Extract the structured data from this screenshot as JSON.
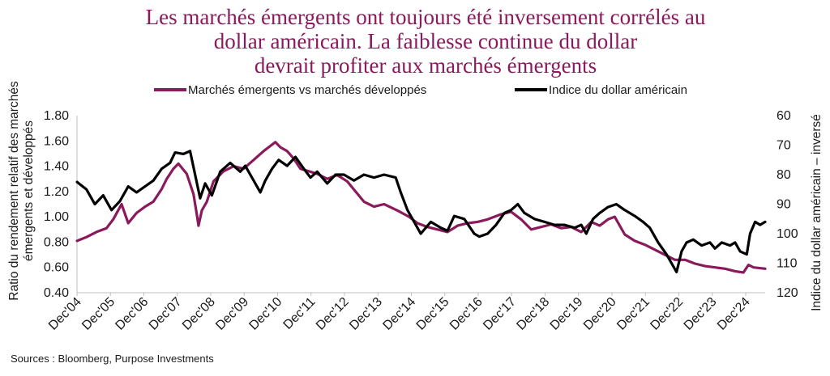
{
  "chart_data": {
    "type": "line",
    "title": [
      "Les marchés émergents ont toujours été inversement corrélés au",
      "dollar américain. La faiblesse continue du dollar",
      "devrait profiter aux marchés émergents"
    ],
    "source": "Sources : Bloomberg, Purpose Investments",
    "ylabel_left": [
      "Ratio du rendement relatif des marchés",
      "émergents et développés"
    ],
    "ylabel_right": "Indice du dollar américain – inversé",
    "y_left": {
      "min": 0.4,
      "max": 1.8,
      "ticks": [
        "1.80",
        "1.60",
        "1.40",
        "1.20",
        "1.00",
        "0.80",
        "0.60",
        "0.40"
      ]
    },
    "y_right": {
      "min": 60,
      "max": 120,
      "inverted": true,
      "ticks": [
        "60",
        "70",
        "80",
        "90",
        "100",
        "110",
        "120"
      ]
    },
    "x_range": [
      2004.917,
      2025.5
    ],
    "x_ticks": [
      {
        "label": "Dec'04",
        "x": 2004.917
      },
      {
        "label": "Dec'05",
        "x": 2005.917
      },
      {
        "label": "Dec'06",
        "x": 2006.917
      },
      {
        "label": "Dec'07",
        "x": 2007.917
      },
      {
        "label": "Dec'08",
        "x": 2008.917
      },
      {
        "label": "Dec'09",
        "x": 2009.917
      },
      {
        "label": "Dec'10",
        "x": 2010.917
      },
      {
        "label": "Dec'11",
        "x": 2011.917
      },
      {
        "label": "Dec'12",
        "x": 2012.917
      },
      {
        "label": "Dec'13",
        "x": 2013.917
      },
      {
        "label": "Dec'14",
        "x": 2014.917
      },
      {
        "label": "Dec'15",
        "x": 2015.917
      },
      {
        "label": "Dec'16",
        "x": 2016.917
      },
      {
        "label": "Dec'17",
        "x": 2017.917
      },
      {
        "label": "Dec'18",
        "x": 2018.917
      },
      {
        "label": "Dec'19",
        "x": 2019.917
      },
      {
        "label": "Dec'20",
        "x": 2020.917
      },
      {
        "label": "Dec'21",
        "x": 2021.917
      },
      {
        "label": "Dec'22",
        "x": 2022.917
      },
      {
        "label": "Dec'23",
        "x": 2023.917
      },
      {
        "label": "Dec'24",
        "x": 2024.917
      }
    ],
    "series": [
      {
        "name": "Marchés émergents vs marchés développés",
        "axis": "left",
        "color": "#8a1a5c",
        "points": [
          [
            2004.92,
            0.81
          ],
          [
            2005.2,
            0.84
          ],
          [
            2005.5,
            0.88
          ],
          [
            2005.8,
            0.91
          ],
          [
            2006.0,
            0.98
          ],
          [
            2006.25,
            1.1
          ],
          [
            2006.45,
            0.95
          ],
          [
            2006.7,
            1.03
          ],
          [
            2006.95,
            1.08
          ],
          [
            2007.2,
            1.12
          ],
          [
            2007.45,
            1.22
          ],
          [
            2007.6,
            1.3
          ],
          [
            2007.8,
            1.38
          ],
          [
            2007.95,
            1.42
          ],
          [
            2008.2,
            1.34
          ],
          [
            2008.4,
            1.18
          ],
          [
            2008.5,
            1.02
          ],
          [
            2008.55,
            0.93
          ],
          [
            2008.65,
            1.05
          ],
          [
            2008.8,
            1.12
          ],
          [
            2009.0,
            1.28
          ],
          [
            2009.3,
            1.36
          ],
          [
            2009.6,
            1.4
          ],
          [
            2009.9,
            1.38
          ],
          [
            2010.2,
            1.45
          ],
          [
            2010.5,
            1.52
          ],
          [
            2010.7,
            1.56
          ],
          [
            2010.85,
            1.59
          ],
          [
            2011.0,
            1.55
          ],
          [
            2011.2,
            1.52
          ],
          [
            2011.4,
            1.46
          ],
          [
            2011.6,
            1.38
          ],
          [
            2011.85,
            1.36
          ],
          [
            2012.1,
            1.34
          ],
          [
            2012.4,
            1.3
          ],
          [
            2012.7,
            1.33
          ],
          [
            2013.0,
            1.28
          ],
          [
            2013.25,
            1.2
          ],
          [
            2013.5,
            1.12
          ],
          [
            2013.8,
            1.08
          ],
          [
            2014.1,
            1.1
          ],
          [
            2014.5,
            1.05
          ],
          [
            2014.85,
            1.0
          ],
          [
            2015.1,
            0.95
          ],
          [
            2015.4,
            0.92
          ],
          [
            2015.7,
            0.9
          ],
          [
            2016.0,
            0.88
          ],
          [
            2016.3,
            0.93
          ],
          [
            2016.6,
            0.95
          ],
          [
            2016.9,
            0.96
          ],
          [
            2017.2,
            0.98
          ],
          [
            2017.6,
            1.02
          ],
          [
            2017.9,
            1.04
          ],
          [
            2018.2,
            0.98
          ],
          [
            2018.5,
            0.9
          ],
          [
            2018.8,
            0.92
          ],
          [
            2019.1,
            0.94
          ],
          [
            2019.4,
            0.91
          ],
          [
            2019.7,
            0.92
          ],
          [
            2020.0,
            0.88
          ],
          [
            2020.3,
            0.96
          ],
          [
            2020.55,
            0.93
          ],
          [
            2020.8,
            0.98
          ],
          [
            2021.0,
            1.0
          ],
          [
            2021.3,
            0.86
          ],
          [
            2021.6,
            0.81
          ],
          [
            2021.9,
            0.78
          ],
          [
            2022.2,
            0.74
          ],
          [
            2022.5,
            0.7
          ],
          [
            2022.8,
            0.66
          ],
          [
            2023.1,
            0.66
          ],
          [
            2023.4,
            0.63
          ],
          [
            2023.7,
            0.61
          ],
          [
            2024.0,
            0.6
          ],
          [
            2024.3,
            0.59
          ],
          [
            2024.6,
            0.57
          ],
          [
            2024.85,
            0.56
          ],
          [
            2025.0,
            0.62
          ],
          [
            2025.15,
            0.6
          ],
          [
            2025.5,
            0.59
          ]
        ]
      },
      {
        "name": "Indice du dollar américain",
        "axis": "right",
        "color": "#000000",
        "points": [
          [
            2004.92,
            82.5
          ],
          [
            2005.2,
            85
          ],
          [
            2005.45,
            90
          ],
          [
            2005.7,
            87
          ],
          [
            2005.95,
            92
          ],
          [
            2006.2,
            89
          ],
          [
            2006.45,
            84
          ],
          [
            2006.7,
            86
          ],
          [
            2006.95,
            84
          ],
          [
            2007.2,
            82
          ],
          [
            2007.45,
            78
          ],
          [
            2007.7,
            76
          ],
          [
            2007.85,
            72.5
          ],
          [
            2008.1,
            73
          ],
          [
            2008.3,
            72
          ],
          [
            2008.45,
            80
          ],
          [
            2008.6,
            88
          ],
          [
            2008.75,
            83
          ],
          [
            2008.95,
            87
          ],
          [
            2009.2,
            79
          ],
          [
            2009.5,
            76
          ],
          [
            2009.8,
            79
          ],
          [
            2009.95,
            77
          ],
          [
            2010.1,
            80
          ],
          [
            2010.4,
            86
          ],
          [
            2010.55,
            82
          ],
          [
            2010.75,
            78
          ],
          [
            2010.95,
            75
          ],
          [
            2011.2,
            77
          ],
          [
            2011.45,
            74
          ],
          [
            2011.7,
            78
          ],
          [
            2011.9,
            81
          ],
          [
            2012.1,
            79
          ],
          [
            2012.4,
            83
          ],
          [
            2012.65,
            80
          ],
          [
            2012.9,
            80
          ],
          [
            2013.2,
            82
          ],
          [
            2013.5,
            80
          ],
          [
            2013.8,
            81
          ],
          [
            2014.1,
            80
          ],
          [
            2014.45,
            81
          ],
          [
            2014.6,
            86
          ],
          [
            2014.8,
            92
          ],
          [
            2015.0,
            96
          ],
          [
            2015.2,
            100
          ],
          [
            2015.5,
            96
          ],
          [
            2015.8,
            98
          ],
          [
            2016.0,
            99
          ],
          [
            2016.2,
            94
          ],
          [
            2016.5,
            95
          ],
          [
            2016.8,
            100
          ],
          [
            2016.95,
            101
          ],
          [
            2017.2,
            100
          ],
          [
            2017.45,
            97
          ],
          [
            2017.7,
            93
          ],
          [
            2017.9,
            92
          ],
          [
            2018.1,
            90
          ],
          [
            2018.3,
            93
          ],
          [
            2018.6,
            95
          ],
          [
            2018.9,
            96
          ],
          [
            2019.2,
            97
          ],
          [
            2019.5,
            97
          ],
          [
            2019.8,
            98
          ],
          [
            2020.0,
            97
          ],
          [
            2020.15,
            100
          ],
          [
            2020.35,
            95
          ],
          [
            2020.55,
            93
          ],
          [
            2020.8,
            91
          ],
          [
            2021.05,
            90
          ],
          [
            2021.3,
            92
          ],
          [
            2021.6,
            94
          ],
          [
            2021.85,
            96
          ],
          [
            2022.05,
            98
          ],
          [
            2022.3,
            103
          ],
          [
            2022.55,
            107
          ],
          [
            2022.7,
            110
          ],
          [
            2022.85,
            113
          ],
          [
            2023.0,
            106
          ],
          [
            2023.15,
            103
          ],
          [
            2023.35,
            102
          ],
          [
            2023.6,
            104
          ],
          [
            2023.85,
            103
          ],
          [
            2024.0,
            105
          ],
          [
            2024.2,
            103
          ],
          [
            2024.45,
            104
          ],
          [
            2024.6,
            103
          ],
          [
            2024.75,
            106
          ],
          [
            2024.95,
            107
          ],
          [
            2025.05,
            100
          ],
          [
            2025.2,
            96
          ],
          [
            2025.35,
            97
          ],
          [
            2025.5,
            96
          ]
        ]
      }
    ]
  }
}
